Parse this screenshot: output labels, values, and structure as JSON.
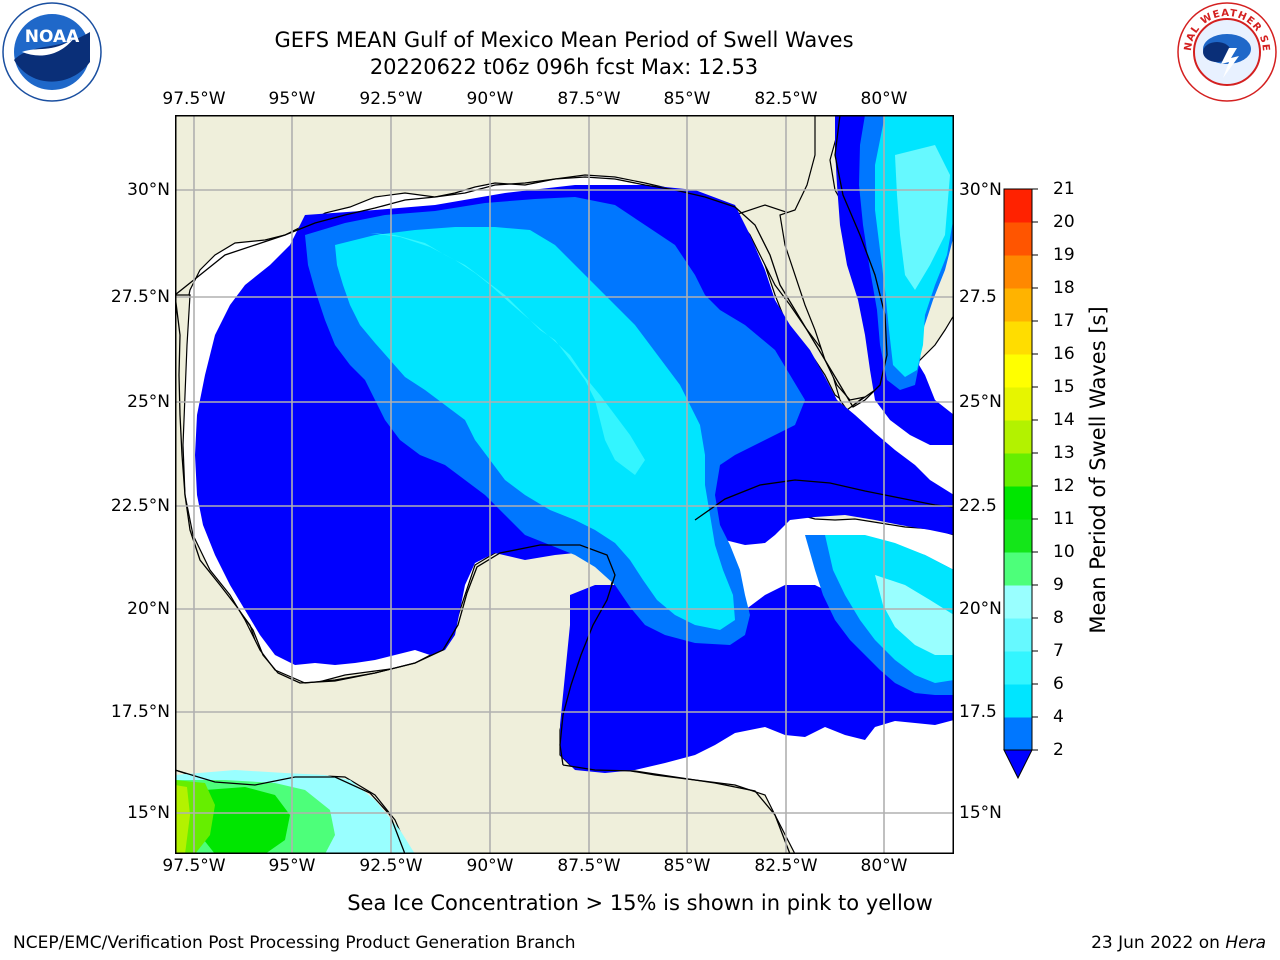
{
  "title": {
    "line1": "GEFS MEAN Gulf of Mexico Mean Period of Swell Waves",
    "line2": "20220622 t06z 096h fcst   Max: 12.53"
  },
  "logos": {
    "left": "noaa-logo",
    "right": "national-weather-service-logo"
  },
  "axes": {
    "lon_ticks": [
      "97.5°W",
      "95°W",
      "92.5°W",
      "90°W",
      "87.5°W",
      "85°W",
      "82.5°W",
      "80°W"
    ],
    "lat_ticks_left": [
      "30°N",
      "27.5°N",
      "25°N",
      "22.5°N",
      "20°N",
      "17.5°N",
      "15°N"
    ],
    "lat_ticks_right": [
      "30°N",
      "27.5",
      "25°N",
      "22.5",
      "20°N",
      "17.5",
      "15°N"
    ],
    "lon_range": [
      -98,
      -78.3
    ],
    "lat_range": [
      14,
      31.9
    ]
  },
  "colorbar": {
    "label": "Mean Period of Swell Waves [s]",
    "levels": [
      "2",
      "4",
      "6",
      "7",
      "8",
      "9",
      "10",
      "11",
      "12",
      "13",
      "14",
      "15",
      "16",
      "17",
      "18",
      "19",
      "20",
      "21"
    ],
    "colors": [
      "#0077ff",
      "#00e5ff",
      "#33f5ff",
      "#66f9ff",
      "#99ffff",
      "#4dff7a",
      "#14e619",
      "#00e600",
      "#66ee00",
      "#b3f200",
      "#e6f500",
      "#ffff00",
      "#ffdd00",
      "#ffb300",
      "#ff8800",
      "#ff5500",
      "#ff2200",
      "#ff0000"
    ],
    "under_color": "#0000ff",
    "extend": "min"
  },
  "map": {
    "land_color": "#efefdb",
    "ocean_nodata_color": "#ffffff",
    "grid": true
  },
  "footer": {
    "note": "Sea Ice Concentration > 15% is shown in pink to yellow",
    "left": "NCEP/EMC/Verification Post Processing Product Generation Branch",
    "right_date": "23 Jun 2022 on ",
    "right_host": "Hera"
  }
}
